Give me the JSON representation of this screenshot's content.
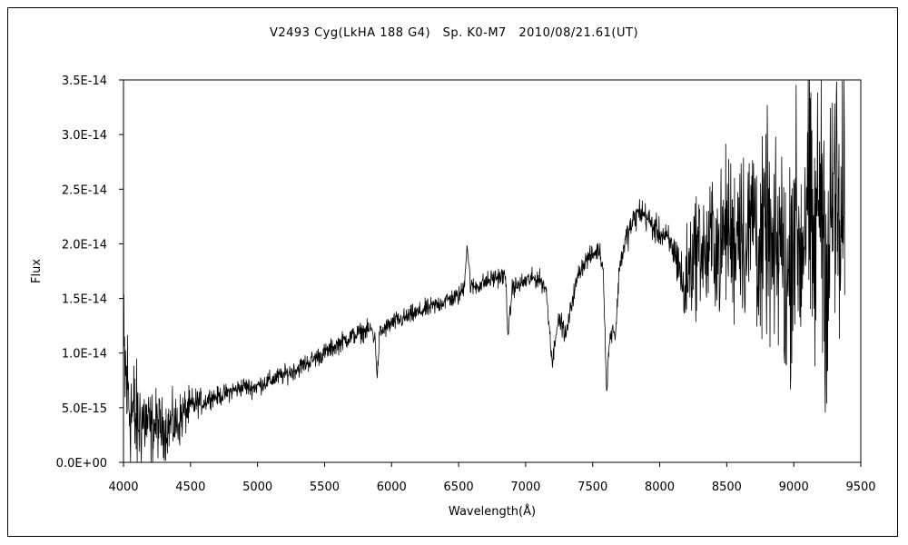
{
  "chart_data": {
    "type": "line",
    "title": "V2493 Cyg(LkHA 188 G4)　Sp. K0-M7　2010/08/21.61(UT)",
    "xlabel": "Wavelength(Å)",
    "ylabel": "Flux",
    "xlim": [
      4000,
      9500
    ],
    "ylim": [
      0,
      3.5e-14
    ],
    "x_ticks": [
      4000,
      4500,
      5000,
      5500,
      6000,
      6500,
      7000,
      7500,
      8000,
      8500,
      9000,
      9500
    ],
    "x_tick_labels": [
      "4000",
      "4500",
      "5000",
      "5500",
      "6000",
      "6500",
      "7000",
      "7500",
      "8000",
      "8500",
      "9000",
      "9500"
    ],
    "y_ticks": [
      0,
      5e-15,
      1e-14,
      1.5e-14,
      2e-14,
      2.5e-14,
      3e-14,
      3.5e-14
    ],
    "y_tick_labels": [
      "0.0E+00",
      "5.0E-15",
      "1.0E-14",
      "1.5E-14",
      "2.0E-14",
      "2.5E-14",
      "3.0E-14",
      "3.5E-14"
    ],
    "grid": false,
    "legend": "none",
    "line_color": "#000000",
    "series": [
      {
        "x": [
          4000,
          4050,
          4100,
          4150,
          4200,
          4250,
          4300,
          4350,
          4400,
          4450,
          4500,
          4550,
          4600,
          4650,
          4700,
          4750,
          4800,
          4850,
          4900,
          4950,
          5000,
          5050,
          5100,
          5150,
          5200,
          5250,
          5300,
          5350,
          5400,
          5450,
          5500,
          5550,
          5600,
          5650,
          5700,
          5750,
          5800,
          5850,
          5880,
          5893,
          5910,
          5950,
          6000,
          6050,
          6100,
          6150,
          6200,
          6250,
          6300,
          6350,
          6400,
          6450,
          6500,
          6540,
          6563,
          6590,
          6650,
          6700,
          6750,
          6800,
          6850,
          6870,
          6900,
          6950,
          7000,
          7050,
          7100,
          7150,
          7180,
          7200,
          7230,
          7260,
          7300,
          7350,
          7400,
          7450,
          7500,
          7550,
          7580,
          7605,
          7620,
          7650,
          7670,
          7700,
          7750,
          7800,
          7850,
          7900,
          7950,
          8000,
          8050,
          8100,
          8150,
          8180,
          8200,
          8250,
          8300,
          8350,
          8400,
          8450,
          8500,
          8550,
          8600,
          8650,
          8700,
          8750,
          8800,
          8850,
          8900,
          8950,
          9000,
          9050,
          9100,
          9150,
          9200,
          9250,
          9300,
          9350,
          9380
        ],
        "y": [
          9e-15,
          5e-15,
          3.5e-15,
          4e-15,
          3e-15,
          3.5e-15,
          3e-15,
          3.5e-15,
          3.5e-15,
          4.5e-15,
          5e-15,
          5.5e-15,
          5.5e-15,
          6e-15,
          6e-15,
          6.2e-15,
          6.5e-15,
          6.7e-15,
          7e-15,
          6.8e-15,
          7e-15,
          7.3e-15,
          7.5e-15,
          7.8e-15,
          8e-15,
          8.3e-15,
          8.6e-15,
          9e-15,
          9.3e-15,
          9.7e-15,
          1e-14,
          1.04e-14,
          1.08e-14,
          1.12e-14,
          1.15e-14,
          1.18e-14,
          1.2e-14,
          1.22e-14,
          1.1e-14,
          7.5e-15,
          1.18e-14,
          1.22e-14,
          1.27e-14,
          1.3e-14,
          1.32e-14,
          1.35e-14,
          1.37e-14,
          1.4e-14,
          1.42e-14,
          1.45e-14,
          1.48e-14,
          1.5e-14,
          1.52e-14,
          1.6e-14,
          2e-14,
          1.6e-14,
          1.62e-14,
          1.65e-14,
          1.68e-14,
          1.7e-14,
          1.7e-14,
          1.15e-14,
          1.6e-14,
          1.62e-14,
          1.66e-14,
          1.68e-14,
          1.68e-14,
          1.6e-14,
          1.2e-14,
          9e-15,
          1.25e-14,
          1.3e-14,
          1.15e-14,
          1.5e-14,
          1.75e-14,
          1.85e-14,
          1.9e-14,
          1.95e-14,
          1.75e-14,
          6e-15,
          1.05e-14,
          1.25e-14,
          1.15e-14,
          1.8e-14,
          2.05e-14,
          2.2e-14,
          2.3e-14,
          2.25e-14,
          2.15e-14,
          2.1e-14,
          2.05e-14,
          1.95e-14,
          1.8e-14,
          1.5e-14,
          1.7e-14,
          1.9e-14,
          2e-14,
          1.85e-14,
          2.1e-14,
          1.9e-14,
          2.2e-14,
          2e-14,
          2.3e-14,
          1.9e-14,
          2.4e-14,
          1.8e-14,
          2.2e-14,
          1.7e-14,
          2.1e-14,
          1.5e-14,
          2.3e-14,
          1.9e-14,
          2.5e-14,
          1.8e-14,
          2.7e-14,
          1.6e-14,
          2.6e-14,
          1.9e-14,
          2.4e-14
        ],
        "noise": [
          9e-15,
          8e-15,
          6e-15,
          5e-15,
          4e-15,
          3.5e-15,
          3e-15,
          3e-15,
          3e-15,
          2.5e-15,
          2e-15,
          1.5e-15,
          1.2e-15,
          1e-15,
          1e-15,
          1e-15,
          1e-15,
          1e-15,
          1e-15,
          1e-15,
          1e-15,
          1e-15,
          1e-15,
          1e-15,
          1e-15,
          1e-15,
          1e-15,
          1e-15,
          1e-15,
          1e-15,
          1e-15,
          1e-15,
          1e-15,
          1e-15,
          1e-15,
          1e-15,
          1e-15,
          1e-15,
          1e-15,
          1e-15,
          1e-15,
          1e-15,
          1e-15,
          1e-15,
          1e-15,
          1e-15,
          1e-15,
          1e-15,
          1e-15,
          1e-15,
          1e-15,
          1e-15,
          1e-15,
          1e-15,
          1e-15,
          1e-15,
          1e-15,
          1e-15,
          1e-15,
          1e-15,
          1e-15,
          1e-15,
          1e-15,
          1e-15,
          1e-15,
          1e-15,
          1e-15,
          1e-15,
          1e-15,
          1e-15,
          1e-15,
          1e-15,
          1e-15,
          1e-15,
          1e-15,
          1e-15,
          1e-15,
          1e-15,
          1e-15,
          1e-15,
          1e-15,
          1e-15,
          1e-15,
          1.2e-15,
          1.5e-15,
          1.5e-15,
          1.5e-15,
          1.5e-15,
          1.5e-15,
          1.5e-15,
          1.5e-15,
          2e-15,
          3e-15,
          4e-15,
          5e-15,
          6e-15,
          6e-15,
          6.5e-15,
          7e-15,
          7.5e-15,
          8e-15,
          8.5e-15,
          9e-15,
          9.5e-15,
          1e-14,
          1e-14,
          1.05e-14,
          1.1e-14,
          1.15e-14,
          1.2e-14,
          1.25e-14,
          1.3e-14,
          1.35e-14,
          1.4e-14,
          1.45e-14,
          1.5e-14,
          1.5e-14,
          1.5e-14,
          1.5e-14
        ]
      }
    ]
  }
}
